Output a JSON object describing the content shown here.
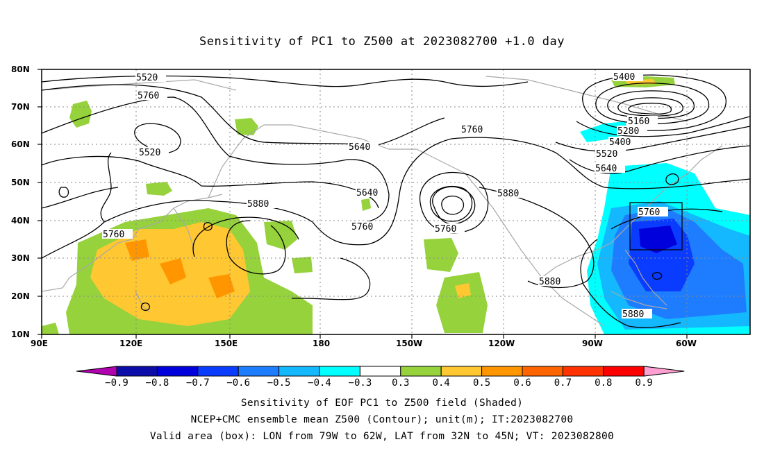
{
  "title": "Sensitivity of PC1 to Z500 at 2023082700 +1.0 day",
  "axes": {
    "lat_ticks": [
      "80N",
      "70N",
      "60N",
      "50N",
      "40N",
      "30N",
      "20N",
      "10N"
    ],
    "lon_ticks": [
      "90E",
      "120E",
      "150E",
      "180",
      "150W",
      "120W",
      "90W",
      "60W"
    ]
  },
  "contour_labels": [
    "5520",
    "5640",
    "5760",
    "5400",
    "5160",
    "5280",
    "5400",
    "5520",
    "5640",
    "5760",
    "5520",
    "5640",
    "5880",
    "5760",
    "5760",
    "5880",
    "5760",
    "5880",
    "5880",
    "5760"
  ],
  "colorbar": {
    "colors": [
      "#b000b0",
      "#0c0ca8",
      "#0000dc",
      "#0a3cff",
      "#1e7dff",
      "#14b8ff",
      "#00ffff",
      "#ffffff",
      "#96d23c",
      "#ffc832",
      "#ff9600",
      "#ff6400",
      "#ff3200",
      "#ff0000",
      "#ffa0d2"
    ],
    "labels": [
      "−0.9",
      "−0.8",
      "−0.7",
      "−0.6",
      "−0.5",
      "−0.4",
      "−0.3",
      "0.3",
      "0.4",
      "0.5",
      "0.6",
      "0.7",
      "0.8",
      "0.9"
    ]
  },
  "captions": [
    "Sensitivity of EOF PC1 to Z500 field (Shaded)",
    "NCEP+CMC ensemble mean Z500 (Contour); unit(m); IT:2023082700",
    "Valid area (box): LON from 79W to 62W, LAT from 32N to 45N; VT: 2023082800"
  ],
  "valid_box": {
    "lon_from": "79W",
    "lon_to": "62W",
    "lat_from": "32N",
    "lat_to": "45N"
  }
}
